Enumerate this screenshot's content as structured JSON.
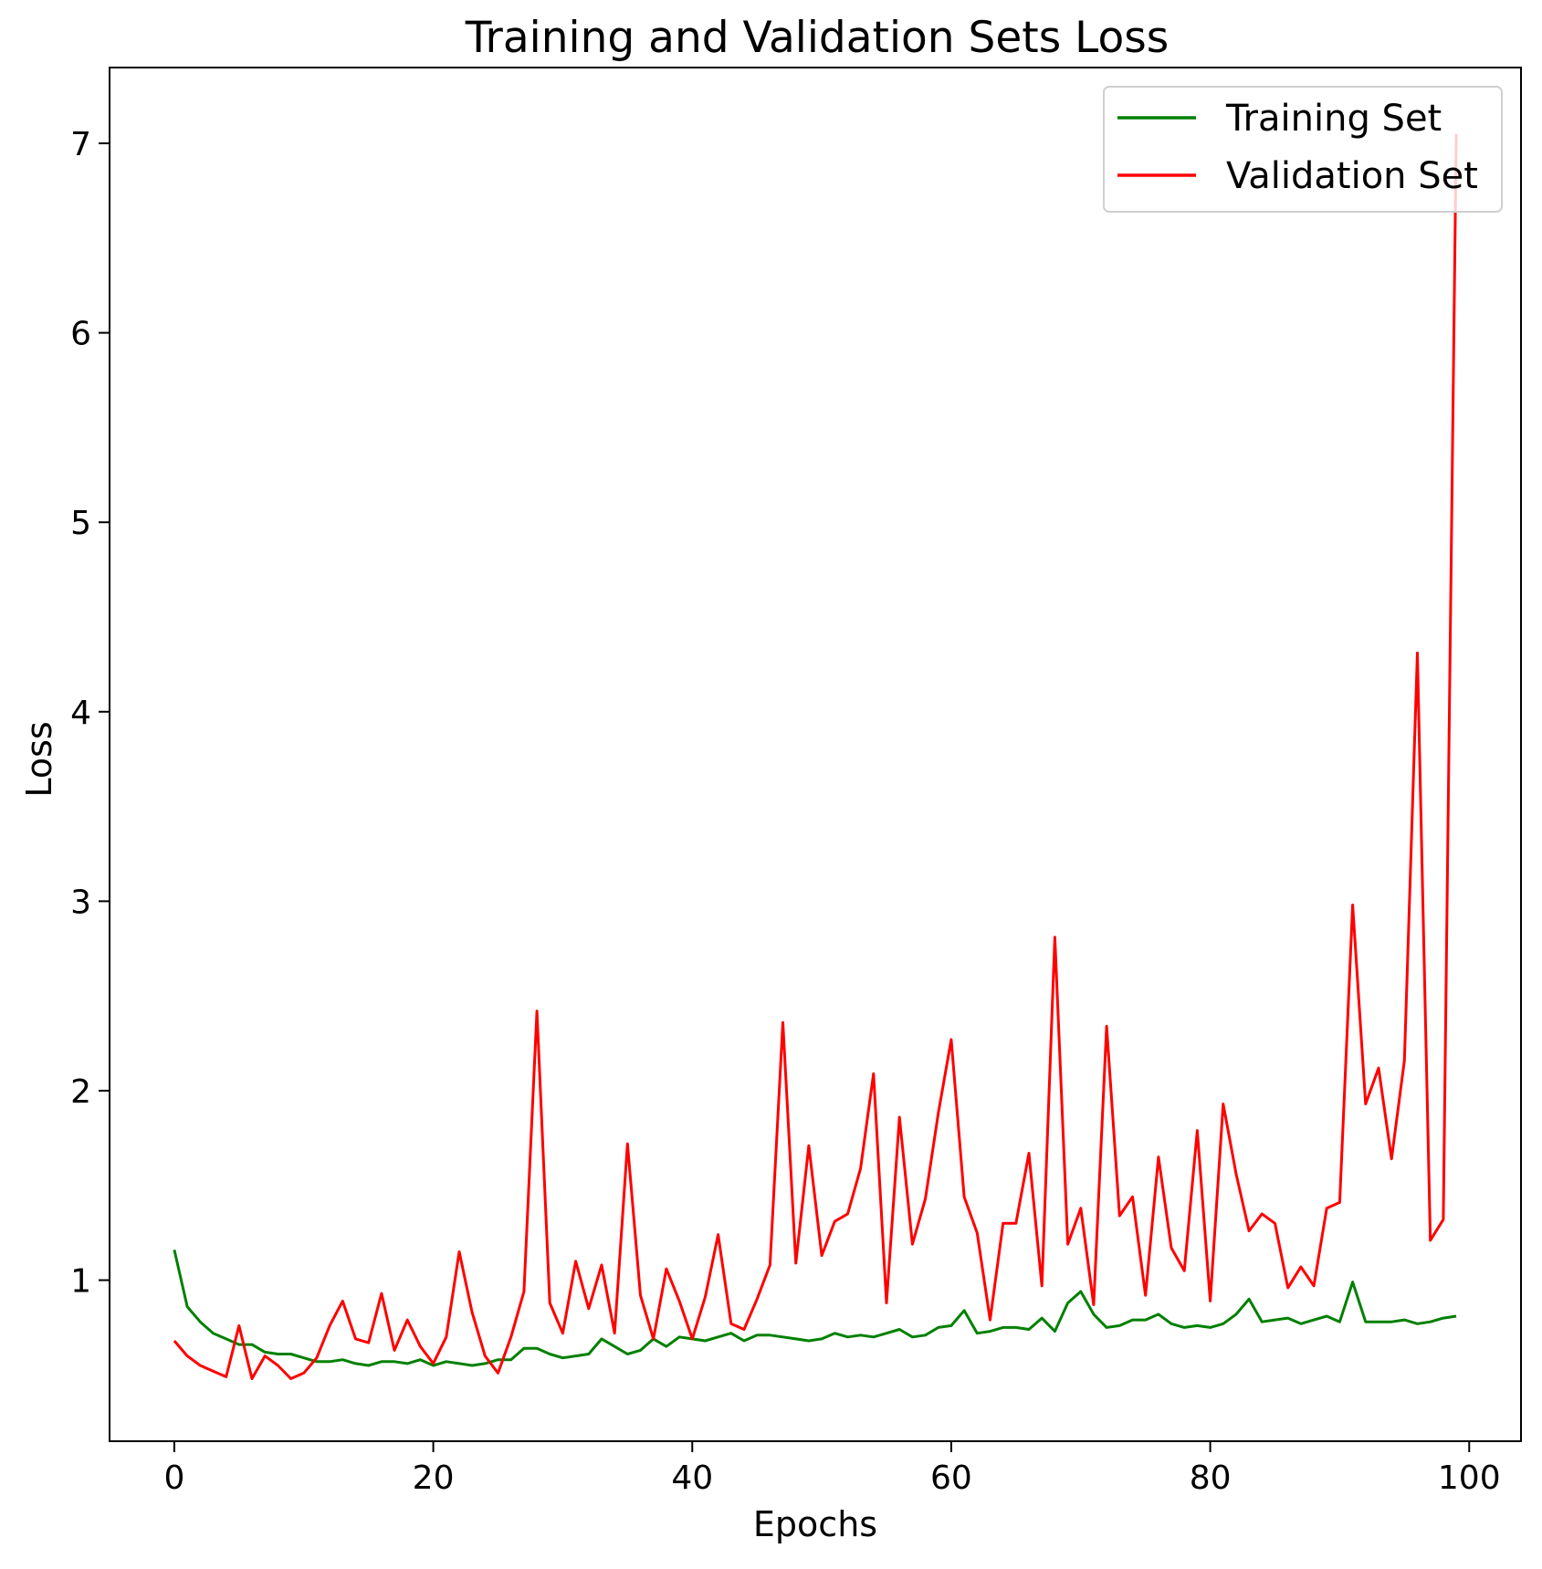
{
  "chart_data": {
    "type": "line",
    "title": "Training and Validation Sets Loss",
    "xlabel": "Epochs",
    "ylabel": "Loss",
    "xlim": [
      -5,
      104
    ],
    "ylim": [
      0.15,
      7.4
    ],
    "xticks": [
      0,
      20,
      40,
      60,
      80,
      100
    ],
    "xtick_labels": [
      "0",
      "20",
      "40",
      "60",
      "80",
      "100"
    ],
    "yticks": [
      1,
      2,
      3,
      4,
      5,
      6,
      7
    ],
    "ytick_labels": [
      "1",
      "2",
      "3",
      "4",
      "5",
      "6",
      "7"
    ],
    "grid": false,
    "legend_position": "top-right",
    "x": [
      0,
      1,
      2,
      3,
      4,
      5,
      6,
      7,
      8,
      9,
      10,
      11,
      12,
      13,
      14,
      15,
      16,
      17,
      18,
      19,
      20,
      21,
      22,
      23,
      24,
      25,
      26,
      27,
      28,
      29,
      30,
      31,
      32,
      33,
      34,
      35,
      36,
      37,
      38,
      39,
      40,
      41,
      42,
      43,
      44,
      45,
      46,
      47,
      48,
      49,
      50,
      51,
      52,
      53,
      54,
      55,
      56,
      57,
      58,
      59,
      60,
      61,
      62,
      63,
      64,
      65,
      66,
      67,
      68,
      69,
      70,
      71,
      72,
      73,
      74,
      75,
      76,
      77,
      78,
      79,
      80,
      81,
      82,
      83,
      84,
      85,
      86,
      87,
      88,
      89,
      90,
      91,
      92,
      93,
      94,
      95,
      96,
      97,
      98,
      99
    ],
    "series": [
      {
        "name": "Training Set",
        "color": "#008000",
        "values": [
          1.16,
          0.86,
          0.78,
          0.72,
          0.69,
          0.66,
          0.66,
          0.62,
          0.61,
          0.61,
          0.59,
          0.57,
          0.57,
          0.58,
          0.56,
          0.55,
          0.57,
          0.57,
          0.56,
          0.58,
          0.55,
          0.57,
          0.56,
          0.55,
          0.56,
          0.58,
          0.58,
          0.64,
          0.64,
          0.61,
          0.59,
          0.6,
          0.61,
          0.69,
          0.65,
          0.61,
          0.63,
          0.69,
          0.65,
          0.7,
          0.69,
          0.68,
          0.7,
          0.72,
          0.68,
          0.71,
          0.71,
          0.7,
          0.69,
          0.68,
          0.69,
          0.72,
          0.7,
          0.71,
          0.7,
          0.72,
          0.74,
          0.7,
          0.71,
          0.75,
          0.76,
          0.84,
          0.72,
          0.73,
          0.75,
          0.75,
          0.74,
          0.8,
          0.73,
          0.88,
          0.94,
          0.82,
          0.75,
          0.76,
          0.79,
          0.79,
          0.82,
          0.77,
          0.75,
          0.76,
          0.75,
          0.77,
          0.82,
          0.9,
          0.78,
          0.79,
          0.8,
          0.77,
          0.79,
          0.81,
          0.78,
          0.99,
          0.78,
          0.78,
          0.78,
          0.79,
          0.77,
          0.78,
          0.8,
          0.81
        ]
      },
      {
        "name": "Validation Set",
        "color": "#ff0000",
        "values": [
          0.68,
          0.6,
          0.55,
          0.52,
          0.49,
          0.76,
          0.48,
          0.6,
          0.55,
          0.48,
          0.51,
          0.59,
          0.76,
          0.89,
          0.69,
          0.67,
          0.93,
          0.63,
          0.79,
          0.65,
          0.56,
          0.7,
          1.15,
          0.83,
          0.6,
          0.51,
          0.7,
          0.94,
          2.42,
          0.88,
          0.72,
          1.1,
          0.85,
          1.08,
          0.72,
          1.72,
          0.92,
          0.69,
          1.06,
          0.89,
          0.69,
          0.91,
          1.24,
          0.77,
          0.74,
          0.9,
          1.08,
          2.36,
          1.09,
          1.71,
          1.13,
          1.31,
          1.35,
          1.59,
          2.09,
          0.88,
          1.86,
          1.19,
          1.43,
          1.88,
          2.27,
          1.44,
          1.25,
          0.79,
          1.3,
          1.3,
          1.67,
          0.97,
          2.81,
          1.19,
          1.38,
          0.87,
          2.34,
          1.34,
          1.44,
          0.92,
          1.65,
          1.17,
          1.05,
          1.79,
          0.89,
          1.93,
          1.56,
          1.26,
          1.35,
          1.3,
          0.96,
          1.07,
          0.97,
          1.38,
          1.41,
          2.98,
          1.93,
          2.12,
          1.64,
          2.16,
          4.31,
          1.21,
          1.32,
          7.05
        ]
      }
    ]
  }
}
